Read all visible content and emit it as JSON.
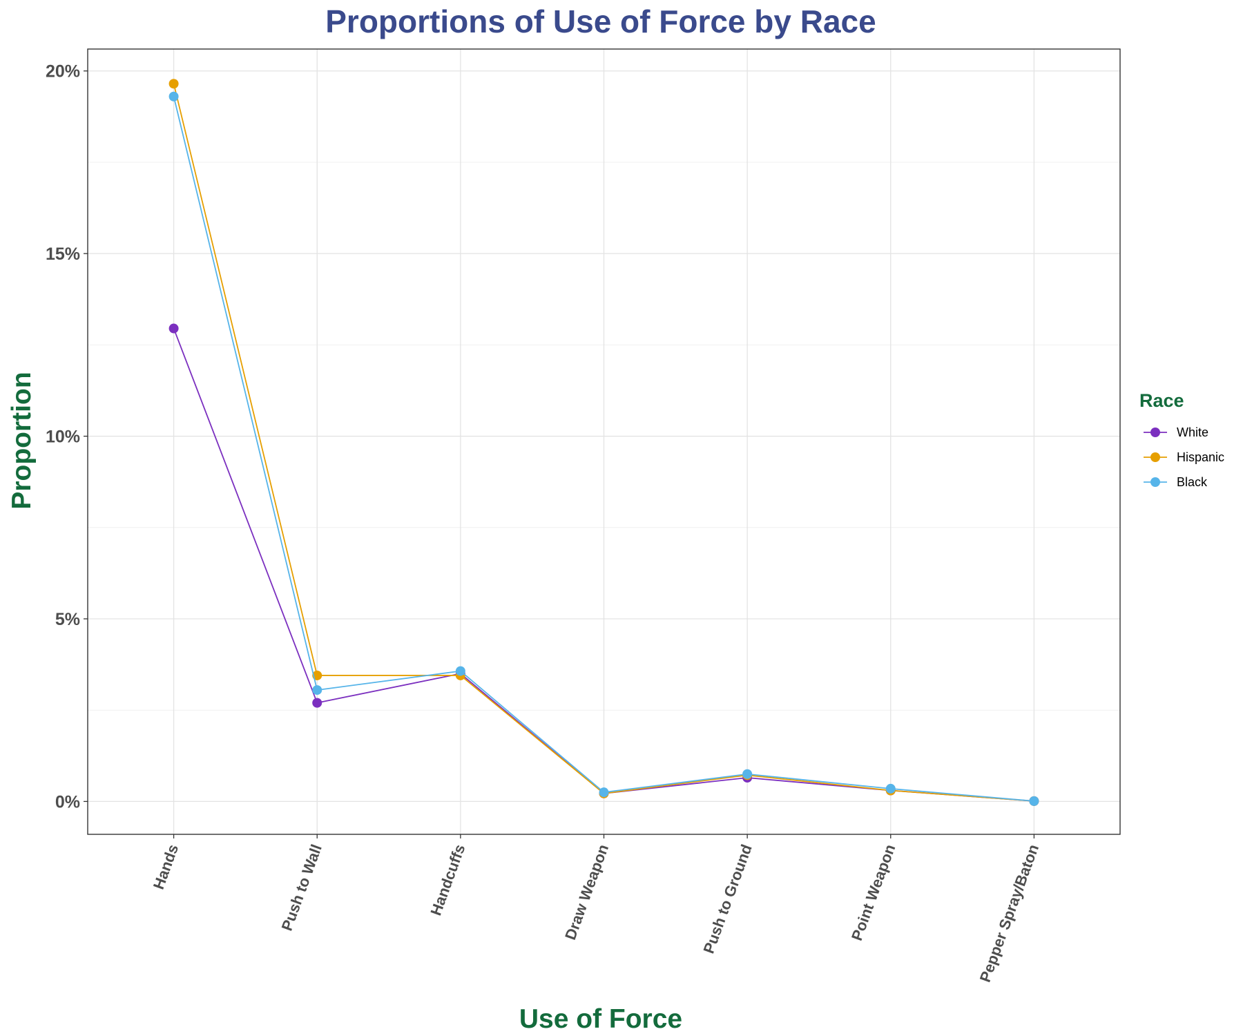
{
  "chart_data": {
    "type": "line",
    "title": "Proportions of Use of Force by Race",
    "xlabel": "Use of Force",
    "ylabel": "Proportion",
    "categories": [
      "Hands",
      "Push to Wall",
      "Handcuffs",
      "Draw Weapon",
      "Push to Ground",
      "Point Weapon",
      "Pepper Spray/Baton"
    ],
    "ylim": [
      -0.009,
      0.206
    ],
    "yticks": [
      0,
      0.05,
      0.1,
      0.15,
      0.2
    ],
    "ytick_labels": [
      "0%",
      "5%",
      "10%",
      "15%",
      "20%"
    ],
    "grid": true,
    "legend": {
      "title": "Race",
      "position": "right"
    },
    "series": [
      {
        "name": "White",
        "color": "#7b2fbf",
        "values": [
          0.1295,
          0.027,
          0.035,
          0.0022,
          0.0065,
          0.003,
          0.0001
        ]
      },
      {
        "name": "Hispanic",
        "color": "#e69f00",
        "values": [
          0.1965,
          0.0345,
          0.0345,
          0.0022,
          0.0072,
          0.003,
          0.0001
        ]
      },
      {
        "name": "Black",
        "color": "#56b4e9",
        "values": [
          0.193,
          0.0305,
          0.0357,
          0.0025,
          0.0075,
          0.0035,
          0.0001
        ]
      }
    ]
  }
}
